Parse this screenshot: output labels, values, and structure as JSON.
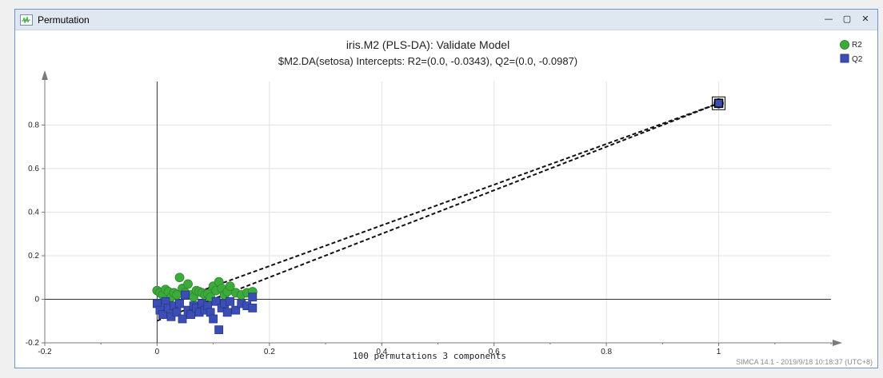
{
  "window": {
    "title": "Permutation",
    "icon": "permutation-plot-icon",
    "controls": [
      "minimize-icon",
      "maximize-icon",
      "close-icon"
    ]
  },
  "footer": {
    "text": "SIMCA 14.1 - 2019/9/18 10:18:37 (UTC+8)"
  },
  "colors": {
    "r2": "#3cab3c",
    "q2": "#3b4eb5",
    "grid": "#e2e2e2",
    "axis": "#7a7a7a"
  },
  "chart_data": {
    "type": "scatter",
    "title": "iris.M2 (PLS-DA): Validate Model",
    "subtitle": "$M2.DA(setosa) Intercepts: R2=(0.0, -0.0343), Q2=(0.0, -0.0987)",
    "xlabel": "100 permutations 3 components",
    "ylabel": "",
    "xlim": [
      -0.2,
      1.2
    ],
    "ylim": [
      -0.2,
      1.0
    ],
    "xticks": [
      -0.2,
      0,
      0.2,
      0.4,
      0.6,
      0.8,
      1
    ],
    "yticks": [
      -0.2,
      0,
      0.2,
      0.4,
      0.6,
      0.8
    ],
    "grid": true,
    "legend": "top-right",
    "series": [
      {
        "name": "R2",
        "marker": "circle",
        "points": [
          [
            0.0,
            0.04
          ],
          [
            0.005,
            0.03
          ],
          [
            0.01,
            0.02
          ],
          [
            0.015,
            0.045
          ],
          [
            0.02,
            0.035
          ],
          [
            0.025,
            0.01
          ],
          [
            0.03,
            0.03
          ],
          [
            0.035,
            0.02
          ],
          [
            0.04,
            0.1
          ],
          [
            0.045,
            0.05
          ],
          [
            0.05,
            0.03
          ],
          [
            0.055,
            0.07
          ],
          [
            0.06,
            0.02
          ],
          [
            0.065,
            0.01
          ],
          [
            0.07,
            0.04
          ],
          [
            0.075,
            0.035
          ],
          [
            0.08,
            0.03
          ],
          [
            0.085,
            0.02
          ],
          [
            0.09,
            0.025
          ],
          [
            0.095,
            0.01
          ],
          [
            0.1,
            0.06
          ],
          [
            0.105,
            0.04
          ],
          [
            0.11,
            0.08
          ],
          [
            0.115,
            0.05
          ],
          [
            0.12,
            0.02
          ],
          [
            0.125,
            0.035
          ],
          [
            0.13,
            0.06
          ],
          [
            0.14,
            0.03
          ],
          [
            0.15,
            0.02
          ],
          [
            0.16,
            0.03
          ],
          [
            0.17,
            0.035
          ],
          [
            1.0,
            0.9
          ]
        ]
      },
      {
        "name": "Q2",
        "marker": "square",
        "points": [
          [
            0.0,
            -0.02
          ],
          [
            0.005,
            -0.05
          ],
          [
            0.01,
            -0.07
          ],
          [
            0.015,
            -0.01
          ],
          [
            0.02,
            -0.04
          ],
          [
            0.025,
            -0.08
          ],
          [
            0.03,
            -0.03
          ],
          [
            0.035,
            -0.06
          ],
          [
            0.04,
            -0.02
          ],
          [
            0.045,
            -0.09
          ],
          [
            0.05,
            0.02
          ],
          [
            0.055,
            -0.05
          ],
          [
            0.06,
            -0.07
          ],
          [
            0.065,
            -0.03
          ],
          [
            0.07,
            -0.04
          ],
          [
            0.075,
            -0.06
          ],
          [
            0.08,
            -0.02
          ],
          [
            0.085,
            -0.05
          ],
          [
            0.09,
            -0.03
          ],
          [
            0.095,
            -0.06
          ],
          [
            0.1,
            -0.09
          ],
          [
            0.105,
            -0.01
          ],
          [
            0.11,
            -0.14
          ],
          [
            0.115,
            -0.04
          ],
          [
            0.12,
            -0.02
          ],
          [
            0.125,
            -0.06
          ],
          [
            0.13,
            -0.01
          ],
          [
            0.14,
            -0.05
          ],
          [
            0.15,
            -0.02
          ],
          [
            0.16,
            -0.03
          ],
          [
            0.17,
            0.01
          ],
          [
            0.17,
            -0.04
          ],
          [
            1.0,
            0.9
          ]
        ]
      }
    ],
    "regression_lines": [
      {
        "series": "R2",
        "from": [
          0.0,
          -0.0343
        ],
        "to": [
          1.0,
          0.9
        ]
      },
      {
        "series": "Q2",
        "from": [
          0.0,
          -0.0987
        ],
        "to": [
          1.0,
          0.9
        ]
      }
    ]
  }
}
